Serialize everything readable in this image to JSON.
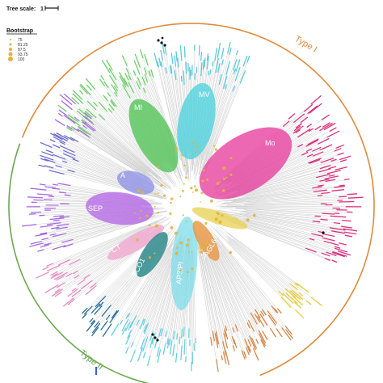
{
  "scale": {
    "label": "Tree scale:",
    "value": "1"
  },
  "legend": {
    "title": "Bootstrap",
    "entries": [
      "75",
      "81.25",
      "87.5",
      "93.75",
      "100"
    ],
    "color": "#e0b53a"
  },
  "types": [
    {
      "label": "Type I",
      "color": "#e08a3c"
    },
    {
      "label": "Type II",
      "color": "#6aa84f"
    }
  ],
  "clades": [
    {
      "label": "MI",
      "color": "#49c24f"
    },
    {
      "label": "MV",
      "color": "#46d0dc"
    },
    {
      "label": "Mo",
      "color": "#e6359a"
    },
    {
      "label": "A",
      "color": "#8a8ee6"
    },
    {
      "label": "SEP",
      "color": "#b163e6"
    },
    {
      "label": "CT",
      "color": "#f2a3cc"
    },
    {
      "label": "SCO1",
      "color": "#2f8b8c"
    },
    {
      "label": "AP3/PI",
      "color": "#7fdcea"
    },
    {
      "label": "AGL6",
      "color": "#e69a4a"
    },
    {
      "label": "",
      "color": "#e8d04f"
    }
  ],
  "leaf_groups": [
    {
      "name": "MI",
      "color": "#6ccf6a"
    },
    {
      "name": "MV",
      "color": "#5dc9d8"
    },
    {
      "name": "Mo",
      "color": "#d9337e"
    },
    {
      "name": "A",
      "color": "#6f6fd0"
    },
    {
      "name": "SEP",
      "color": "#a56ae0"
    },
    {
      "name": "CT",
      "color": "#e48ac0"
    },
    {
      "name": "SCO1",
      "color": "#2d6f9a"
    },
    {
      "name": "AP3/PI",
      "color": "#69d0e0"
    },
    {
      "name": "AGL6",
      "color": "#d4884a"
    },
    {
      "name": "yellow",
      "color": "#e3cc3c"
    }
  ]
}
